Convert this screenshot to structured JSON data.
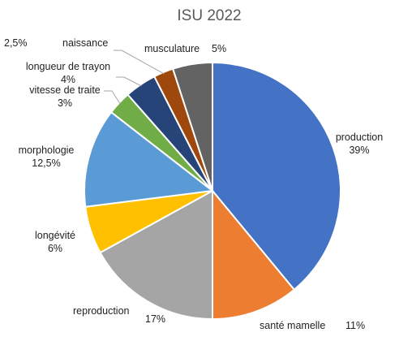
{
  "chart_data": {
    "type": "pie",
    "title": "ISU 2022",
    "slices": [
      {
        "name": "production",
        "value": 39,
        "value_label": "39%",
        "color": "#4472C4"
      },
      {
        "name": "santé mamelle",
        "value": 11,
        "value_label": "11%",
        "color": "#ED7D31"
      },
      {
        "name": "reproduction",
        "value": 17,
        "value_label": "17%",
        "color": "#A5A5A5"
      },
      {
        "name": "longévité",
        "value": 6,
        "value_label": "6%",
        "color": "#FFC000"
      },
      {
        "name": "morphologie",
        "value": 12.5,
        "value_label": "12,5%",
        "color": "#5B9BD5"
      },
      {
        "name": "vitesse de traite",
        "value": 3,
        "value_label": "3%",
        "color": "#70AD47"
      },
      {
        "name": "longueur de trayon",
        "value": 4,
        "value_label": "4%",
        "color": "#264478"
      },
      {
        "name": "naissance",
        "value": 2.5,
        "value_label": "2,5%",
        "color": "#9E480E"
      },
      {
        "name": "musculature",
        "value": 5,
        "value_label": "5%",
        "color": "#636363"
      }
    ]
  }
}
